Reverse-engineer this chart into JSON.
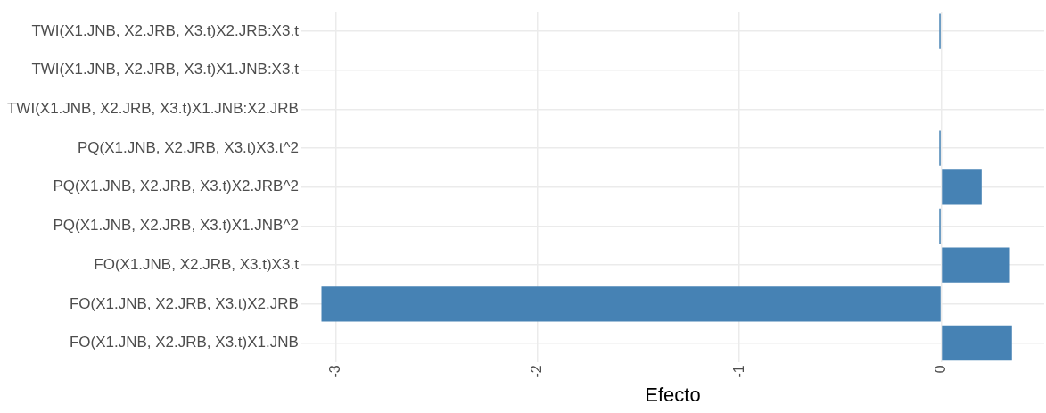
{
  "chart_data": {
    "type": "bar",
    "orientation": "horizontal",
    "xlabel": "Efecto",
    "categories": [
      "TWI(X1.JNB, X2.JRB, X3.t)X2.JRB:X3.t",
      "TWI(X1.JNB, X2.JRB, X3.t)X1.JNB:X3.t",
      "TWI(X1.JNB, X2.JRB, X3.t)X1.JNB:X2.JRB",
      "PQ(X1.JNB, X2.JRB, X3.t)X3.t^2",
      "PQ(X1.JNB, X2.JRB, X3.t)X2.JRB^2",
      "PQ(X1.JNB, X2.JRB, X3.t)X1.JNB^2",
      "FO(X1.JNB, X2.JRB, X3.t)X3.t",
      "FO(X1.JNB, X2.JRB, X3.t)X2.JRB",
      "FO(X1.JNB, X2.JRB, X3.t)X1.JNB"
    ],
    "values": [
      -0.01,
      0,
      0,
      -0.01,
      0.2,
      -0.01,
      0.34,
      -3.07,
      0.35
    ],
    "color": "#4682b4",
    "xlim": [
      -3.17,
      0.51
    ],
    "xticks": [
      -3,
      -2,
      -1,
      0
    ],
    "grid": true
  }
}
